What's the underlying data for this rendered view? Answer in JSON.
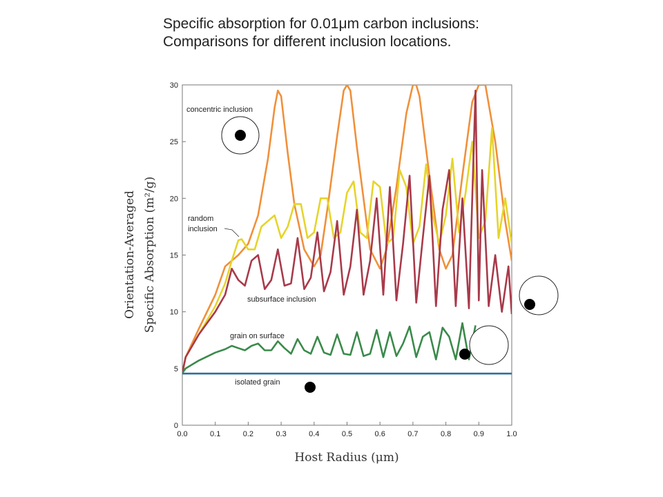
{
  "slide": {
    "title_line1": "Specific absorption for 0.01μm carbon inclusions:",
    "title_line2": "Comparisons for different inclusion locations."
  },
  "chart_data": {
    "type": "line",
    "xlabel": "Host Radius (μm)",
    "ylabel_line1": "Orientation-Averaged",
    "ylabel_line2": "Specific Absorption (m²/g)",
    "xlim": [
      0.0,
      1.0
    ],
    "ylim": [
      0,
      30
    ],
    "x_ticks": [
      "0.0",
      "0.1",
      "0.2",
      "0.3",
      "0.4",
      "0.5",
      "0.6",
      "0.7",
      "0.8",
      "0.9",
      "1.0"
    ],
    "y_ticks": [
      "0",
      "5",
      "10",
      "15",
      "20",
      "25",
      "30"
    ],
    "grid": false,
    "series": [
      {
        "name": "concentric inclusion",
        "color": "#f0903a",
        "x": [
          0.0,
          0.01,
          0.05,
          0.1,
          0.13,
          0.17,
          0.2,
          0.23,
          0.26,
          0.28,
          0.29,
          0.3,
          0.32,
          0.34,
          0.37,
          0.4,
          0.42,
          0.44,
          0.47,
          0.49,
          0.5,
          0.51,
          0.53,
          0.57,
          0.6,
          0.62,
          0.65,
          0.68,
          0.7,
          0.71,
          0.72,
          0.75,
          0.78,
          0.8,
          0.82,
          0.85,
          0.88,
          0.9,
          0.92,
          0.95,
          0.98,
          1.0
        ],
        "y": [
          4.6,
          6.0,
          8.5,
          11.5,
          14.0,
          15.0,
          16.0,
          18.5,
          23.5,
          28.0,
          29.5,
          29.0,
          24.0,
          19.5,
          15.5,
          14.0,
          15.0,
          19.0,
          25.5,
          29.5,
          30.0,
          29.5,
          24.5,
          15.5,
          13.8,
          15.5,
          21.0,
          27.5,
          30.0,
          30.0,
          29.0,
          22.0,
          15.5,
          13.8,
          15.0,
          22.0,
          28.5,
          30.0,
          30.0,
          25.0,
          18.0,
          14.5
        ]
      },
      {
        "name": "random inclusion",
        "color": "#e6d42a",
        "x": [
          0.0,
          0.01,
          0.05,
          0.1,
          0.13,
          0.15,
          0.17,
          0.18,
          0.2,
          0.22,
          0.24,
          0.26,
          0.28,
          0.3,
          0.32,
          0.34,
          0.36,
          0.38,
          0.4,
          0.42,
          0.44,
          0.46,
          0.48,
          0.5,
          0.52,
          0.54,
          0.56,
          0.58,
          0.6,
          0.62,
          0.64,
          0.66,
          0.68,
          0.7,
          0.72,
          0.74,
          0.76,
          0.78,
          0.8,
          0.82,
          0.84,
          0.86,
          0.88,
          0.9,
          0.92,
          0.94,
          0.96,
          0.98,
          1.0
        ],
        "y": [
          4.6,
          6.0,
          8.0,
          10.5,
          12.5,
          14.5,
          16.3,
          16.4,
          15.5,
          15.5,
          17.5,
          18.0,
          18.5,
          16.5,
          17.5,
          19.5,
          19.5,
          16.5,
          17.0,
          20.0,
          20.0,
          16.5,
          17.0,
          20.5,
          21.5,
          17.0,
          16.5,
          21.5,
          21.0,
          16.0,
          16.5,
          22.5,
          21.0,
          16.0,
          17.5,
          23.0,
          18.5,
          16.0,
          18.5,
          23.5,
          17.0,
          20.5,
          25.0,
          16.5,
          18.0,
          26.2,
          16.5,
          20.0,
          16.0
        ]
      },
      {
        "name": "subsurface inclusion",
        "color": "#a83a4a",
        "x": [
          0.0,
          0.01,
          0.05,
          0.1,
          0.13,
          0.15,
          0.17,
          0.19,
          0.21,
          0.23,
          0.25,
          0.27,
          0.29,
          0.31,
          0.33,
          0.35,
          0.37,
          0.39,
          0.41,
          0.43,
          0.45,
          0.47,
          0.49,
          0.51,
          0.53,
          0.55,
          0.57,
          0.59,
          0.61,
          0.63,
          0.65,
          0.67,
          0.69,
          0.71,
          0.73,
          0.75,
          0.77,
          0.79,
          0.81,
          0.83,
          0.85,
          0.87,
          0.89,
          0.9,
          0.91,
          0.93,
          0.95,
          0.97,
          0.99,
          1.0
        ],
        "y": [
          4.6,
          6.0,
          8.0,
          10.0,
          11.5,
          13.8,
          12.8,
          12.3,
          14.5,
          15.0,
          12.0,
          12.8,
          15.5,
          12.3,
          12.5,
          16.5,
          12.0,
          13.0,
          17.0,
          11.8,
          13.5,
          18.0,
          11.5,
          14.0,
          19.0,
          11.5,
          14.5,
          20.0,
          11.5,
          21.0,
          11.0,
          16.0,
          22.0,
          10.8,
          16.5,
          22.0,
          10.5,
          19.0,
          22.5,
          10.5,
          20.0,
          10.3,
          29.5,
          11.0,
          22.5,
          10.5,
          15.0,
          10.0,
          14.0,
          9.8
        ]
      },
      {
        "name": "grain on surface",
        "color": "#3a8a4a",
        "x": [
          0.0,
          0.01,
          0.05,
          0.1,
          0.13,
          0.15,
          0.17,
          0.19,
          0.21,
          0.23,
          0.25,
          0.27,
          0.29,
          0.31,
          0.33,
          0.35,
          0.37,
          0.39,
          0.41,
          0.43,
          0.45,
          0.47,
          0.49,
          0.51,
          0.53,
          0.55,
          0.57,
          0.59,
          0.61,
          0.63,
          0.65,
          0.67,
          0.69,
          0.71,
          0.73,
          0.75,
          0.77,
          0.79,
          0.81,
          0.83,
          0.85,
          0.87,
          0.89
        ],
        "y": [
          4.6,
          5.0,
          5.7,
          6.4,
          6.7,
          7.0,
          6.8,
          6.6,
          7.0,
          7.2,
          6.6,
          6.6,
          7.4,
          6.8,
          6.3,
          7.6,
          6.6,
          6.3,
          7.8,
          6.4,
          6.2,
          8.0,
          6.3,
          6.2,
          8.2,
          6.1,
          6.3,
          8.4,
          6.0,
          8.2,
          6.1,
          7.2,
          8.7,
          6.0,
          7.8,
          8.2,
          5.8,
          8.6,
          7.8,
          5.8,
          9.0,
          5.8,
          8.8
        ]
      },
      {
        "name": "isolated grain",
        "color": "#2e6e9e",
        "x": [
          0.0,
          1.0
        ],
        "y": [
          4.55,
          4.55
        ]
      }
    ],
    "annotations": [
      "concentric inclusion",
      "random",
      "inclusion",
      "subsurface inclusion",
      "grain on surface",
      "isolated grain"
    ]
  }
}
